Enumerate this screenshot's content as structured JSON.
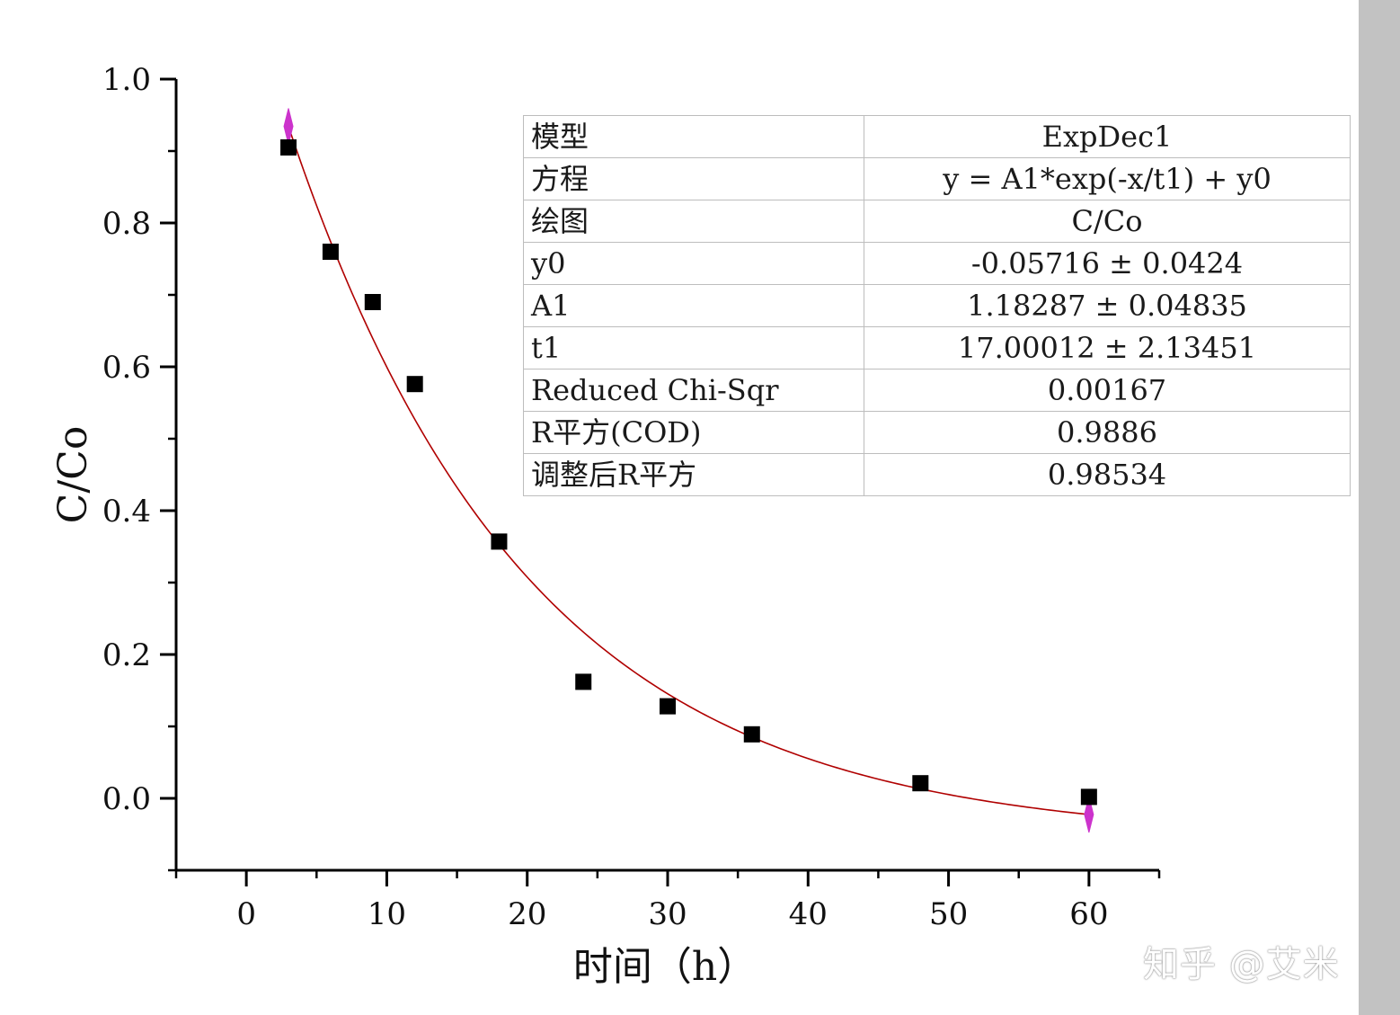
{
  "chart_data": {
    "type": "scatter",
    "xlabel": "时间（h）",
    "ylabel": "C/Co",
    "xlim": [
      -5,
      65
    ],
    "ylim": [
      -0.1,
      1.0
    ],
    "x_ticks": [
      0,
      10,
      20,
      30,
      40,
      50,
      60
    ],
    "y_ticks": [
      0.0,
      0.2,
      0.4,
      0.6,
      0.8,
      1.0
    ],
    "x_tick_labels": [
      "0",
      "10",
      "20",
      "30",
      "40",
      "50",
      "60"
    ],
    "y_tick_labels": [
      "0.0",
      "0.2",
      "0.4",
      "0.6",
      "0.8",
      "1.0"
    ],
    "grid": false,
    "series": [
      {
        "marker": "square",
        "color": "#000000",
        "points": [
          {
            "x": 3,
            "y": 0.905
          },
          {
            "x": 6,
            "y": 0.76
          },
          {
            "x": 9,
            "y": 0.69
          },
          {
            "x": 12,
            "y": 0.576
          },
          {
            "x": 18,
            "y": 0.357
          },
          {
            "x": 24,
            "y": 0.162
          },
          {
            "x": 30,
            "y": 0.128
          },
          {
            "x": 36,
            "y": 0.089
          },
          {
            "x": 48,
            "y": 0.021
          },
          {
            "x": 60,
            "y": 0.002
          }
        ]
      }
    ],
    "fit": {
      "color": "#b00000",
      "x_range": [
        3,
        60
      ],
      "y0": -0.05716,
      "A1": 1.18287,
      "t1": 17.00012,
      "endpoint_marker_color": "#cc33cc"
    },
    "fit_table": [
      {
        "key": "模型",
        "value": "ExpDec1"
      },
      {
        "key": "方程",
        "value": "y = A1*exp(-x/t1) + y0"
      },
      {
        "key": "绘图",
        "value": "C/Co"
      },
      {
        "key": "y0",
        "value": "-0.05716 ± 0.0424"
      },
      {
        "key": "A1",
        "value": "1.18287 ± 0.04835"
      },
      {
        "key": "t1",
        "value": "17.00012 ± 2.13451"
      },
      {
        "key": "Reduced Chi-Sqr",
        "value": "0.00167"
      },
      {
        "key": "R平方(COD)",
        "value": "0.9886"
      },
      {
        "key": "调整后R平方",
        "value": "0.98534"
      }
    ]
  },
  "watermark": "知乎 @艾米"
}
